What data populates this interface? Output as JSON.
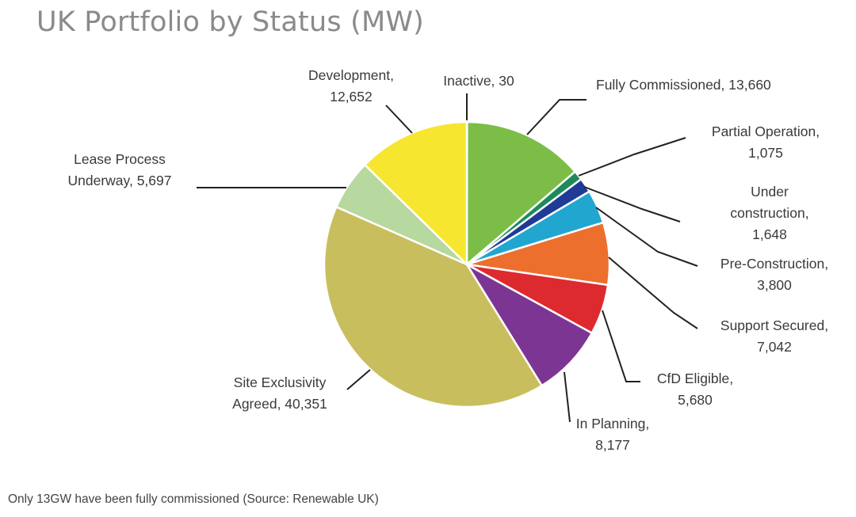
{
  "page": {
    "caption": "Only 13GW have been fully commissioned (Source: Renewable UK)"
  },
  "chart_data": {
    "type": "pie",
    "title": "UK Portfolio by Status (MW)",
    "start_angle_deg": 0,
    "direction": "clockwise",
    "slices": [
      {
        "name": "Inactive",
        "value": 30,
        "color": "#1f4e79",
        "label_lines": [
          "Inactive, 30"
        ]
      },
      {
        "name": "Fully Commissioned",
        "value": 13660,
        "color": "#7cbd48",
        "label_lines": [
          "Fully Commissioned, 13,660"
        ]
      },
      {
        "name": "Partial Operation",
        "value": 1075,
        "color": "#1d8a5a",
        "label_lines": [
          "Partial Operation,",
          "1,075"
        ]
      },
      {
        "name": "Under construction",
        "value": 1648,
        "color": "#1f3b96",
        "label_lines": [
          "Under",
          "construction,",
          "1,648"
        ]
      },
      {
        "name": "Pre-Construction",
        "value": 3800,
        "color": "#20a6cf",
        "label_lines": [
          "Pre-Construction,",
          "3,800"
        ]
      },
      {
        "name": "Support Secured",
        "value": 7042,
        "color": "#ec6f2e",
        "label_lines": [
          "Support Secured,",
          "7,042"
        ]
      },
      {
        "name": "CfD Eligible",
        "value": 5680,
        "color": "#dd2a2f",
        "label_lines": [
          "CfD Eligible,",
          "5,680"
        ]
      },
      {
        "name": "In Planning",
        "value": 8177,
        "color": "#7d3593",
        "label_lines": [
          "In Planning,",
          "8,177"
        ]
      },
      {
        "name": "Site Exclusivity Agreed",
        "value": 40351,
        "color": "#c9be5e",
        "label_lines": [
          "Site Exclusivity",
          "Agreed, 40,351"
        ]
      },
      {
        "name": "Lease Process Underway",
        "value": 5697,
        "color": "#b7d89e",
        "label_lines": [
          "Lease Process",
          "Underway, 5,697"
        ]
      },
      {
        "name": "Development",
        "value": 12652,
        "color": "#f7e630",
        "label_lines": [
          "Development,",
          "12,652"
        ]
      }
    ]
  }
}
